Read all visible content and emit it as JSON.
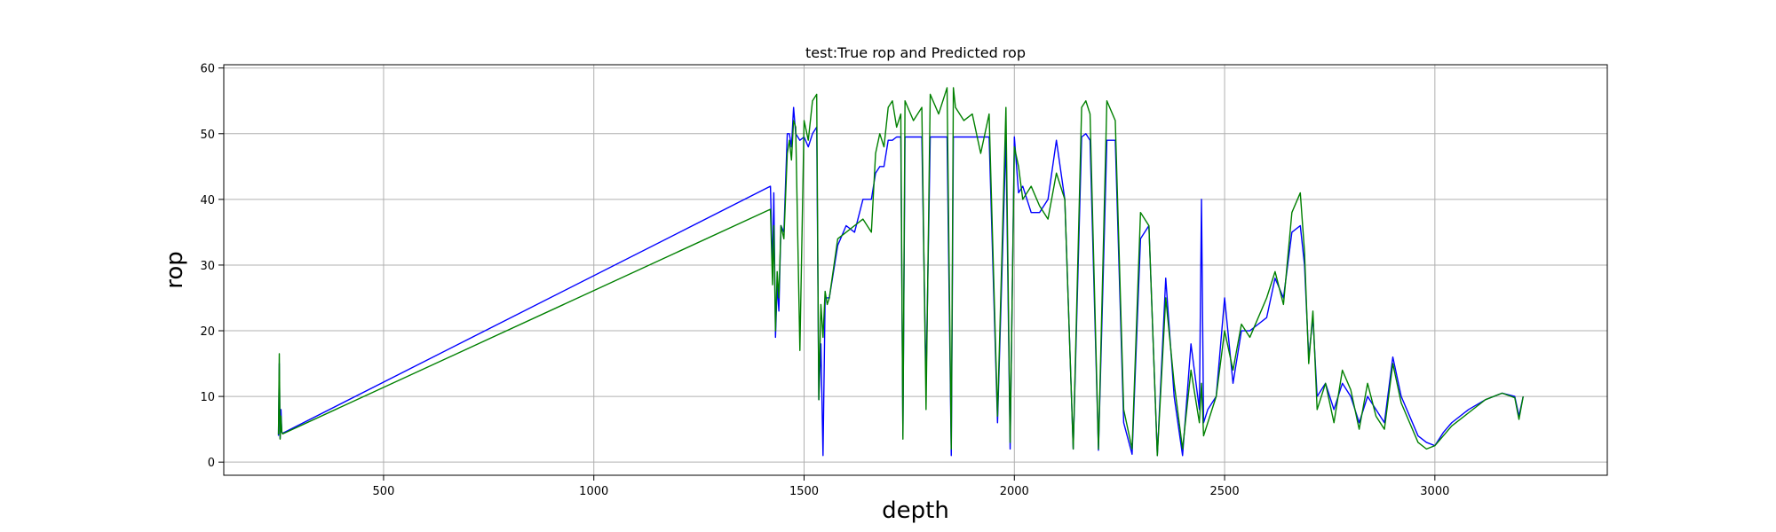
{
  "chart_data": {
    "type": "line",
    "title": "test:True rop and Predicted rop",
    "xlabel": "depth",
    "ylabel": "rop",
    "xlim": [
      120,
      3410
    ],
    "ylim": [
      -2,
      60.5
    ],
    "x_ticks": [
      500,
      1000,
      1500,
      2000,
      2500,
      3000
    ],
    "y_ticks": [
      0,
      10,
      20,
      30,
      40,
      50,
      60
    ],
    "grid": true,
    "series": [
      {
        "name": "",
        "color": "#0000ff",
        "x": [
          250,
          252,
          254,
          256,
          258,
          260,
          1420,
          1425,
          1428,
          1432,
          1436,
          1440,
          1445,
          1452,
          1460,
          1465,
          1470,
          1475,
          1480,
          1490,
          1500,
          1510,
          1520,
          1530,
          1535,
          1540,
          1545,
          1550,
          1555,
          1560,
          1580,
          1600,
          1620,
          1640,
          1660,
          1670,
          1680,
          1690,
          1700,
          1710,
          1720,
          1730,
          1735,
          1740,
          1760,
          1780,
          1790,
          1800,
          1820,
          1840,
          1850,
          1855,
          1860,
          1880,
          1900,
          1920,
          1940,
          1960,
          1980,
          1990,
          2000,
          2010,
          2020,
          2040,
          2060,
          2080,
          2100,
          2120,
          2140,
          2160,
          2170,
          2180,
          2200,
          2220,
          2240,
          2260,
          2280,
          2300,
          2320,
          2340,
          2360,
          2380,
          2400,
          2420,
          2440,
          2445,
          2450,
          2460,
          2480,
          2500,
          2520,
          2540,
          2560,
          2580,
          2600,
          2620,
          2640,
          2660,
          2680,
          2690,
          2700,
          2710,
          2720,
          2740,
          2760,
          2780,
          2800,
          2820,
          2840,
          2860,
          2880,
          2900,
          2920,
          2940,
          2960,
          2980,
          3000,
          3020,
          3040,
          3080,
          3120,
          3160,
          3190,
          3200,
          3210
        ],
        "y": [
          4,
          15,
          3.6,
          8,
          4.5,
          4.4,
          42,
          29,
          41,
          19,
          27,
          23,
          36,
          35,
          50,
          50,
          48,
          54,
          50,
          49,
          49.5,
          48,
          50,
          51,
          9.5,
          18,
          1,
          25,
          25,
          25,
          33,
          36,
          35,
          40,
          40,
          44,
          45,
          45,
          49,
          49,
          49.5,
          49.5,
          4,
          49.5,
          49.5,
          49.5,
          12,
          49.5,
          49.5,
          49.5,
          1,
          49.5,
          49.5,
          49.5,
          49.5,
          49.5,
          49.5,
          6,
          49.5,
          2,
          49.5,
          41,
          42,
          38,
          38,
          40,
          49,
          40,
          2,
          49.5,
          50,
          49,
          1.8,
          49,
          49,
          6,
          1.2,
          34,
          36,
          1,
          28,
          10,
          1,
          18,
          8,
          40,
          6,
          8,
          10,
          25,
          12,
          20,
          20,
          21,
          22,
          28,
          25,
          35,
          36,
          30,
          16,
          22,
          10,
          12,
          8,
          12,
          10,
          6,
          10,
          8,
          6,
          16,
          10,
          7,
          4,
          3,
          2.5,
          4.5,
          6,
          8,
          9.5,
          10.5,
          10,
          7,
          10
        ]
      },
      {
        "name": "",
        "color": "#008000",
        "x": [
          250,
          252,
          254,
          256,
          258,
          260,
          1420,
          1425,
          1428,
          1432,
          1436,
          1440,
          1445,
          1452,
          1460,
          1465,
          1470,
          1475,
          1480,
          1490,
          1500,
          1510,
          1520,
          1530,
          1535,
          1540,
          1545,
          1550,
          1555,
          1560,
          1580,
          1600,
          1620,
          1640,
          1660,
          1670,
          1680,
          1690,
          1700,
          1710,
          1720,
          1730,
          1735,
          1740,
          1760,
          1780,
          1790,
          1800,
          1820,
          1840,
          1850,
          1855,
          1860,
          1880,
          1900,
          1920,
          1940,
          1960,
          1980,
          1990,
          2000,
          2010,
          2020,
          2040,
          2060,
          2080,
          2100,
          2120,
          2140,
          2160,
          2170,
          2180,
          2200,
          2220,
          2240,
          2260,
          2280,
          2300,
          2320,
          2340,
          2360,
          2380,
          2400,
          2420,
          2440,
          2445,
          2450,
          2460,
          2480,
          2500,
          2520,
          2540,
          2560,
          2580,
          2600,
          2620,
          2640,
          2660,
          2680,
          2690,
          2700,
          2710,
          2720,
          2740,
          2760,
          2780,
          2800,
          2820,
          2840,
          2860,
          2880,
          2900,
          2920,
          2940,
          2960,
          2980,
          3000,
          3020,
          3040,
          3080,
          3120,
          3160,
          3190,
          3200,
          3210
        ],
        "y": [
          4.2,
          16.5,
          3.5,
          7,
          4.6,
          4.3,
          38.5,
          27,
          36,
          20,
          29,
          25,
          36,
          34,
          47,
          49,
          46,
          52,
          51,
          17,
          52,
          49,
          55,
          56,
          9.5,
          24,
          19,
          26,
          24,
          25,
          34,
          35,
          36,
          37,
          35,
          47,
          50,
          48,
          54,
          55,
          51,
          53,
          3.5,
          55,
          52,
          54,
          8,
          56,
          53,
          57,
          2,
          57,
          54,
          52,
          53,
          47,
          53,
          7,
          54,
          3,
          48,
          45,
          40,
          42,
          39,
          37,
          44,
          40,
          2,
          54,
          55,
          53,
          2,
          55,
          52,
          8,
          2,
          38,
          36,
          1,
          25,
          12,
          2,
          14,
          6,
          12,
          4,
          6,
          10,
          20,
          14,
          21,
          19,
          22,
          25,
          29,
          24,
          38,
          41,
          32,
          15,
          23,
          8,
          12,
          6,
          14,
          11,
          5,
          12,
          7,
          5,
          15,
          9,
          6,
          3,
          2,
          2.5,
          4,
          5.5,
          7.5,
          9.5,
          10.5,
          9.8,
          6.5,
          10
        ]
      }
    ]
  }
}
